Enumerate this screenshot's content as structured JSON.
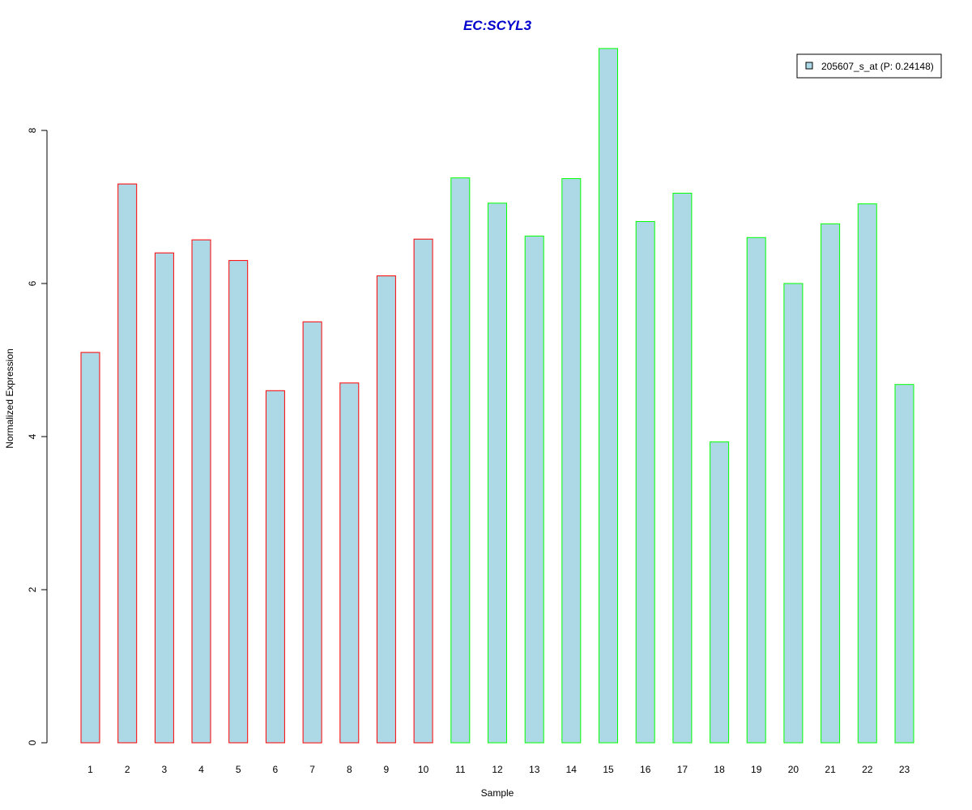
{
  "colors": {
    "background": "#ffffff",
    "bar_fill": "#ADD8E6",
    "group1_border": "#FF0000",
    "group2_border": "#00FF00",
    "title": "#0000CD",
    "axis": "#000000"
  },
  "chart_data": {
    "type": "bar",
    "title": "EC:SCYL3",
    "xlabel": "Sample",
    "ylabel": "Normalized Expression",
    "ylim": [
      0,
      9.2
    ],
    "yticks": [
      0,
      2,
      4,
      6,
      8
    ],
    "grid": false,
    "legend": {
      "placement": "top-right",
      "entries": [
        "205607_s_at (P: 0.24148)"
      ]
    },
    "categories": [
      "1",
      "2",
      "3",
      "4",
      "5",
      "6",
      "7",
      "8",
      "9",
      "10",
      "11",
      "12",
      "13",
      "14",
      "15",
      "16",
      "17",
      "18",
      "19",
      "20",
      "21",
      "22",
      "23"
    ],
    "series": [
      {
        "name": "205607_s_at (P: 0.24148)",
        "values": [
          5.1,
          7.3,
          6.4,
          6.57,
          6.3,
          4.6,
          5.5,
          4.7,
          6.1,
          6.58,
          7.38,
          7.05,
          6.62,
          7.37,
          9.07,
          6.81,
          7.18,
          3.93,
          6.6,
          6.0,
          6.78,
          7.04,
          4.68
        ]
      }
    ],
    "bar_groups": [
      1,
      1,
      1,
      1,
      1,
      1,
      1,
      1,
      1,
      1,
      2,
      2,
      2,
      2,
      2,
      2,
      2,
      2,
      2,
      2,
      2,
      2,
      2
    ]
  }
}
